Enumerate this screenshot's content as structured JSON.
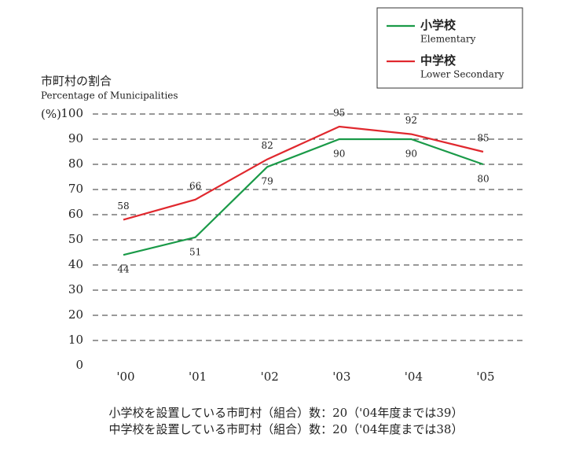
{
  "chart_data": {
    "type": "line",
    "title": "市町村の割合",
    "subtitle": "Percentage of Municipalities",
    "y_unit": "(%)",
    "categories": [
      "'00",
      "'01",
      "'02",
      "'03",
      "'04",
      "'05"
    ],
    "series": [
      {
        "name": "小学校",
        "name_en": "Elementary",
        "color": "#1a9a48",
        "values": [
          44,
          51,
          79,
          90,
          90,
          80
        ]
      },
      {
        "name": "中学校",
        "name_en": "Lower Secondary",
        "color": "#e0282e",
        "values": [
          58,
          66,
          82,
          95,
          92,
          85
        ]
      }
    ],
    "ylim": [
      0,
      100
    ],
    "yticks": [
      0,
      10,
      20,
      30,
      40,
      50,
      60,
      70,
      80,
      90,
      100
    ],
    "grid": true,
    "legend": "top-right",
    "notes": [
      "小学校を設置している市町村（組合）数：20（'04年度までは39）",
      "中学校を設置している市町村（組合）数：20（'04年度までは38）"
    ]
  }
}
